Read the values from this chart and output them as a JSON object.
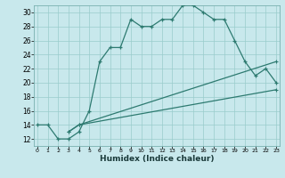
{
  "xlabel": "Humidex (Indice chaleur)",
  "bg_color": "#c8e8ec",
  "grid_color": "#99cccc",
  "line_color": "#2d7a70",
  "xlim": [
    0,
    23
  ],
  "ylim": [
    11,
    31
  ],
  "xticks": [
    0,
    1,
    2,
    3,
    4,
    5,
    6,
    7,
    8,
    9,
    10,
    11,
    12,
    13,
    14,
    15,
    16,
    17,
    18,
    19,
    20,
    21,
    22,
    23
  ],
  "yticks": [
    12,
    14,
    16,
    18,
    20,
    22,
    24,
    26,
    28,
    30
  ],
  "line1_x": [
    0,
    1,
    2,
    3,
    4,
    5,
    6,
    7,
    8,
    9,
    10,
    11,
    12,
    13,
    14,
    15,
    16,
    17,
    18,
    19,
    20,
    21,
    22,
    23
  ],
  "line1_y": [
    14,
    14,
    12,
    12,
    13,
    16,
    23,
    25,
    25,
    29,
    28,
    28,
    29,
    29,
    31,
    31,
    30,
    29,
    29,
    26,
    23,
    21,
    22,
    20
  ],
  "line2_x": [
    3,
    4,
    23
  ],
  "line2_y": [
    13,
    14,
    23
  ],
  "line3_x": [
    3,
    4,
    23
  ],
  "line3_y": [
    13,
    14,
    19
  ]
}
